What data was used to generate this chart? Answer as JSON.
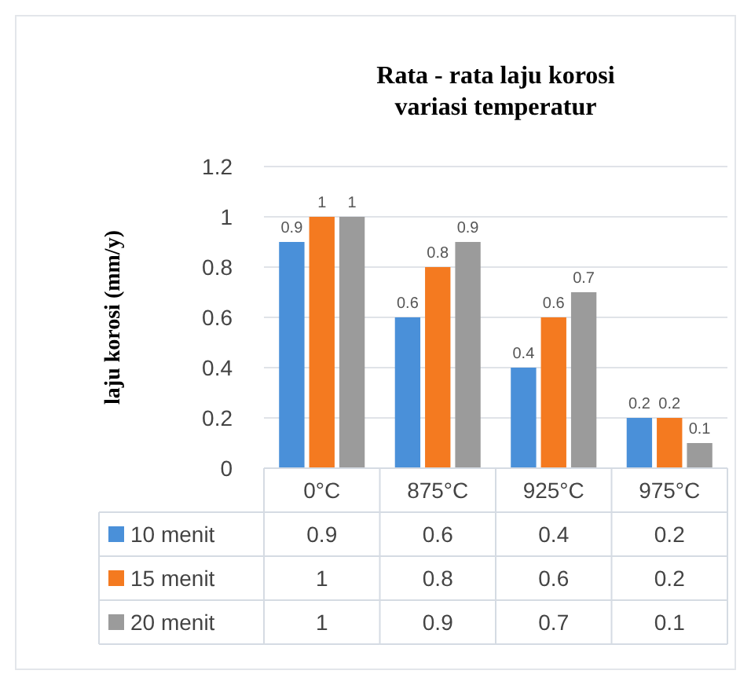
{
  "chart_data": {
    "type": "bar",
    "title": "Rata - rata laju korosi\nvariasi temperatur",
    "ylabel": "laju korosi (mm/y)",
    "categories": [
      "0°C",
      "875°C",
      "925°C",
      "975°C"
    ],
    "series": [
      {
        "name": "10 menit",
        "color": "#4a90d9",
        "values": [
          0.9,
          0.6,
          0.4,
          0.2
        ],
        "value_labels": [
          "0.9",
          "0.6",
          "0.4",
          "0.2"
        ]
      },
      {
        "name": "15 menit",
        "color": "#f47a20",
        "values": [
          1,
          0.8,
          0.6,
          0.2
        ],
        "value_labels": [
          "1",
          "0.8",
          "0.6",
          "0.2"
        ]
      },
      {
        "name": "20 menit",
        "color": "#9b9b9b",
        "values": [
          1,
          0.9,
          0.7,
          0.1
        ],
        "value_labels": [
          "1",
          "0.9",
          "0.7",
          "0.1"
        ]
      }
    ],
    "ylim": [
      0,
      1.2
    ],
    "yticks": [
      0,
      0.2,
      0.4,
      0.6,
      0.8,
      1,
      1.2
    ],
    "grid": "y",
    "legend": "bottom",
    "annotations": [
      "0.9",
      "0.6",
      "0.4",
      "0.2",
      "1",
      "0.8",
      "0.6",
      "0.2",
      "1",
      "0.9",
      "0.7",
      "0.1"
    ]
  }
}
